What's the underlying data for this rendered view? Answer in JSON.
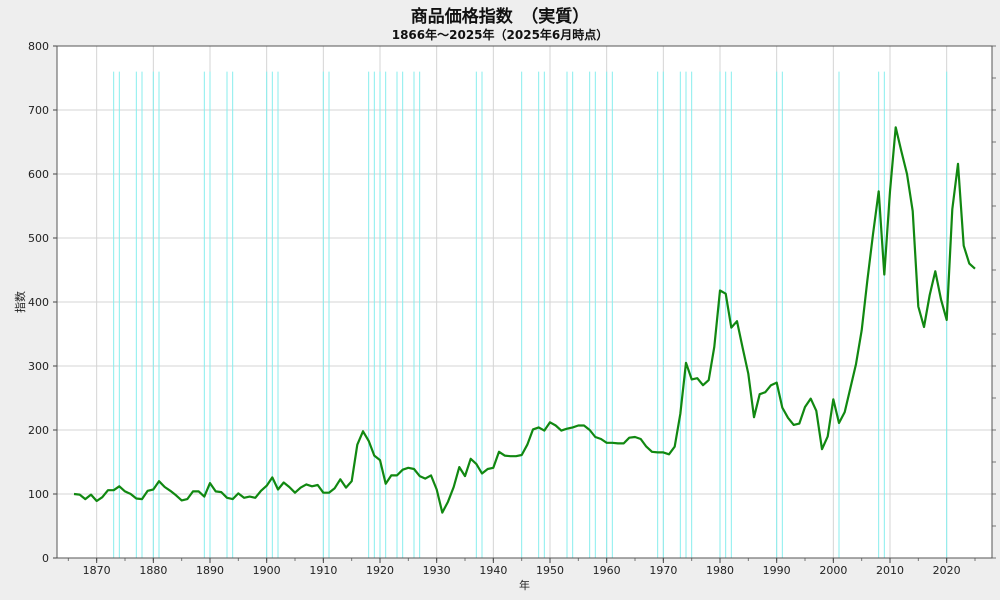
{
  "chart_data": {
    "type": "line",
    "title": "商品価格指数　（実質）",
    "subtitle": "1866年～2025年（2025年6月時点）",
    "xlabel": "年",
    "ylabel": "指数",
    "xlim": [
      1863,
      2028
    ],
    "ylim": [
      0,
      800
    ],
    "x_ticks": [
      1870,
      1880,
      1890,
      1900,
      1910,
      1920,
      1930,
      1940,
      1950,
      1960,
      1970,
      1980,
      1990,
      2000,
      2010,
      2020
    ],
    "y_ticks": [
      0,
      100,
      200,
      300,
      400,
      500,
      600,
      700,
      800
    ],
    "grid": true,
    "colors": {
      "series": "#118811",
      "markers": "#88eeee",
      "plot_bg": "#ffffff",
      "page_bg": "#eeeeee"
    },
    "vertical_markers": [
      1873,
      1874,
      1877,
      1878,
      1880,
      1881,
      1889,
      1890,
      1893,
      1894,
      1900,
      1901,
      1902,
      1910,
      1911,
      1918,
      1919,
      1920,
      1921,
      1923,
      1924,
      1926,
      1927,
      1937,
      1938,
      1945,
      1948,
      1949,
      1953,
      1954,
      1957,
      1958,
      1960,
      1961,
      1969,
      1970,
      1973,
      1974,
      1975,
      1980,
      1981,
      1982,
      1990,
      1991,
      2001,
      2008,
      2009,
      2020
    ],
    "series": [
      {
        "x": [
          1866,
          1867,
          1868,
          1869,
          1870,
          1871,
          1872,
          1873,
          1874,
          1875,
          1876,
          1877,
          1878,
          1879,
          1880,
          1881,
          1882,
          1883,
          1884,
          1885,
          1886,
          1887,
          1888,
          1889,
          1890,
          1891,
          1892,
          1893,
          1894,
          1895,
          1896,
          1897,
          1898,
          1899,
          1900,
          1901,
          1902,
          1903,
          1904,
          1905,
          1906,
          1907,
          1908,
          1909,
          1910,
          1911,
          1912,
          1913,
          1914,
          1915,
          1916,
          1917,
          1918,
          1919,
          1920,
          1921,
          1922,
          1923,
          1924,
          1925,
          1926,
          1927,
          1928,
          1929,
          1930,
          1931,
          1932,
          1933,
          1934,
          1935,
          1936,
          1937,
          1938,
          1939,
          1940,
          1941,
          1942,
          1943,
          1944,
          1945,
          1946,
          1947,
          1948,
          1949,
          1950,
          1951,
          1952,
          1953,
          1954,
          1955,
          1956,
          1957,
          1958,
          1959,
          1960,
          1961,
          1962,
          1963,
          1964,
          1965,
          1966,
          1967,
          1968,
          1969,
          1970,
          1971,
          1972,
          1973,
          1974,
          1975,
          1976,
          1977,
          1978,
          1979,
          1980,
          1981,
          1982,
          1983,
          1984,
          1985,
          1986,
          1987,
          1988,
          1989,
          1990,
          1991,
          1992,
          1993,
          1994,
          1995,
          1996,
          1997,
          1998,
          1999,
          2000,
          2001,
          2002,
          2003,
          2004,
          2005,
          2006,
          2007,
          2008,
          2009,
          2010,
          2011,
          2012,
          2013,
          2014,
          2015,
          2016,
          2017,
          2018,
          2019,
          2020,
          2021,
          2022,
          2023,
          2024,
          2025
        ],
        "values": [
          100,
          99,
          92,
          99,
          89,
          95,
          106,
          106,
          112,
          104,
          100,
          93,
          92,
          105,
          107,
          120,
          111,
          105,
          98,
          90,
          92,
          104,
          104,
          96,
          117,
          104,
          103,
          94,
          92,
          101,
          94,
          96,
          94,
          105,
          113,
          126,
          107,
          118,
          111,
          102,
          110,
          115,
          112,
          114,
          102,
          102,
          109,
          123,
          110,
          120,
          177,
          198,
          183,
          160,
          153,
          116,
          129,
          129,
          138,
          141,
          139,
          128,
          124,
          129,
          107,
          71,
          88,
          111,
          142,
          128,
          155,
          147,
          132,
          139,
          141,
          166,
          160,
          159,
          159,
          161,
          177,
          201,
          204,
          199,
          212,
          207,
          199,
          202,
          204,
          207,
          207,
          200,
          189,
          186,
          180,
          180,
          179,
          179,
          188,
          189,
          186,
          174,
          166,
          165,
          165,
          162,
          174,
          225,
          305,
          279,
          281,
          270,
          278,
          330,
          418,
          413,
          360,
          370,
          328,
          288,
          220,
          256,
          259,
          270,
          274,
          235,
          219,
          208,
          210,
          236,
          249,
          230,
          170,
          190,
          248,
          211,
          228,
          265,
          303,
          356,
          433,
          506,
          573,
          443,
          573,
          673,
          636,
          600,
          542,
          393,
          361,
          411,
          448,
          404,
          372,
          545,
          616,
          488,
          460,
          452
        ]
      }
    ]
  }
}
